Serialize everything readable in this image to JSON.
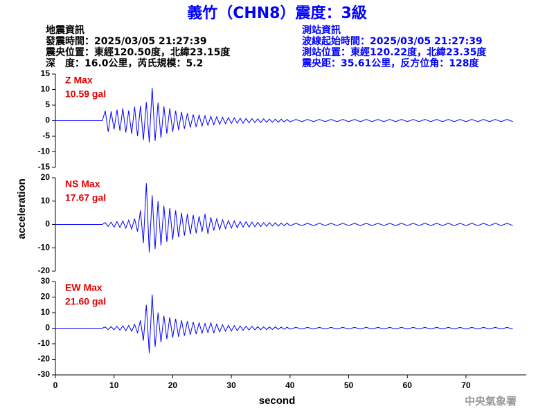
{
  "header": {
    "title": "義竹（CHN8）震度：3級",
    "left": [
      "地震資訊",
      "發震時間：2025/03/05 21:27:39",
      "震央位置：東經120.50度，北緯23.15度",
      "深　度：16.0公里，芮氏規模：5.2"
    ],
    "right": [
      "測站資訊",
      "波線起始時間：2025/03/05 21:27:39",
      "測站位置：東經120.22度，北緯23.35度",
      "震央距：35.61公里，反方位角：128度"
    ]
  },
  "ylabel": "acceleration",
  "credit": "中央氣象署",
  "chart_data": [
    {
      "type": "line",
      "color": "#0000ff",
      "annotation": [
        "Z Max",
        "10.59 gal"
      ],
      "xlim": [
        0,
        80
      ],
      "ylim": [
        -15,
        15
      ],
      "yticks": [
        15,
        10,
        5,
        0,
        -5,
        -10,
        -15
      ],
      "x": [
        0,
        8,
        8.5,
        9,
        9.5,
        10,
        10.5,
        11,
        11.5,
        12,
        12.5,
        13,
        13.5,
        14,
        14.5,
        15,
        15.5,
        16,
        16.5,
        17,
        17.5,
        18,
        18.5,
        19,
        19.5,
        20,
        20.5,
        21,
        21.5,
        22,
        22.5,
        23,
        23.5,
        24,
        24.5,
        25,
        25.5,
        26,
        26.5,
        27,
        27.5,
        28,
        28.5,
        29,
        29.5,
        30,
        30.5,
        31,
        31.5,
        32,
        32.5,
        33,
        33.5,
        34,
        34.5,
        35,
        35.5,
        36,
        36.5,
        37,
        37.5,
        38,
        38.5,
        39,
        39.5,
        40,
        41,
        42,
        43,
        44,
        45,
        46,
        47,
        48,
        49,
        50,
        51,
        52,
        53,
        54,
        55,
        56,
        57,
        58,
        59,
        60,
        61,
        62,
        63,
        64,
        65,
        66,
        67,
        68,
        69,
        70,
        71,
        72,
        73,
        74,
        75,
        76,
        77,
        78
      ],
      "values": [
        0,
        0,
        3.2,
        -3.6,
        3.0,
        -2.8,
        3.5,
        -3.2,
        4.0,
        -3.8,
        3.3,
        -4.2,
        4.5,
        -5.0,
        4.8,
        -6.2,
        6.0,
        -7.0,
        10.59,
        -6.5,
        5.8,
        -5.5,
        4.6,
        -4.2,
        4.0,
        -3.6,
        3.2,
        -3.0,
        2.8,
        -2.6,
        2.4,
        -2.2,
        2.0,
        -2.0,
        1.8,
        -1.7,
        1.6,
        -1.5,
        1.4,
        -1.3,
        1.3,
        -1.2,
        1.1,
        -1.0,
        1.0,
        -0.9,
        0.9,
        -0.8,
        0.8,
        -0.8,
        0.7,
        -0.7,
        0.7,
        -0.6,
        0.6,
        -0.6,
        0.6,
        -0.5,
        0.5,
        -0.5,
        0.5,
        -0.5,
        0.5,
        -0.4,
        0.4,
        -0.4,
        0.4,
        -0.3,
        0.4,
        -0.3,
        0.4,
        -0.3,
        0.4,
        -0.3,
        0.4,
        -0.3,
        0.4,
        -0.3,
        0.4,
        -0.3,
        0.4,
        -0.3,
        0.4,
        -0.3,
        0.4,
        -0.3,
        0.4,
        -0.3,
        0.4,
        -0.3,
        0.4,
        -0.3,
        0.4,
        -0.3,
        0.4,
        -0.3,
        0.4,
        -0.3,
        0.4,
        -0.3,
        0.4,
        -0.3,
        0.4,
        -0.3
      ]
    },
    {
      "type": "line",
      "color": "#0000ff",
      "annotation": [
        "NS Max",
        "17.67 gal"
      ],
      "xlim": [
        0,
        80
      ],
      "ylim": [
        -20,
        20
      ],
      "yticks": [
        20,
        10,
        0,
        -10,
        -20
      ],
      "x": [
        0,
        8,
        8.5,
        9,
        9.5,
        10,
        10.5,
        11,
        11.5,
        12,
        12.5,
        13,
        13.5,
        14,
        14.5,
        15,
        15.5,
        16,
        16.5,
        17,
        17.5,
        18,
        18.5,
        19,
        19.5,
        20,
        20.5,
        21,
        21.5,
        22,
        22.5,
        23,
        23.5,
        24,
        24.5,
        25,
        25.5,
        26,
        26.5,
        27,
        27.5,
        28,
        28.5,
        29,
        29.5,
        30,
        30.5,
        31,
        31.5,
        32,
        32.5,
        33,
        33.5,
        34,
        34.5,
        35,
        35.5,
        36,
        36.5,
        37,
        37.5,
        38,
        38.5,
        39,
        39.5,
        40,
        41,
        42,
        43,
        44,
        45,
        46,
        47,
        48,
        49,
        50,
        51,
        52,
        53,
        54,
        55,
        56,
        57,
        58,
        59,
        60,
        61,
        62,
        63,
        64,
        65,
        66,
        67,
        68,
        69,
        70,
        71,
        72,
        73,
        74,
        75,
        76,
        77,
        78
      ],
      "values": [
        0,
        0,
        0.8,
        -0.9,
        1.0,
        -1.1,
        1.2,
        -1.3,
        1.5,
        -1.6,
        1.8,
        -2.0,
        2.5,
        -3.0,
        6.0,
        -8.0,
        17.67,
        -12.0,
        12.5,
        -10.5,
        10.0,
        -9.0,
        8.0,
        -7.5,
        7.0,
        -6.5,
        6.0,
        -5.5,
        5.0,
        -4.8,
        4.5,
        -4.2,
        4.0,
        -3.8,
        3.5,
        -3.2,
        4.5,
        -4.0,
        3.0,
        -2.6,
        2.4,
        -2.2,
        2.0,
        -1.8,
        1.7,
        -1.6,
        1.5,
        -1.4,
        1.3,
        -1.2,
        1.2,
        -1.1,
        1.0,
        -1.0,
        0.9,
        -0.9,
        0.8,
        -0.8,
        0.8,
        -0.7,
        0.7,
        -0.7,
        0.6,
        -0.6,
        0.6,
        -0.6,
        0.5,
        -0.5,
        0.5,
        -0.5,
        0.5,
        -0.5,
        0.5,
        -0.5,
        0.5,
        -0.5,
        0.5,
        -0.5,
        0.5,
        -0.5,
        0.5,
        -0.5,
        0.5,
        -0.5,
        0.5,
        -0.5,
        0.5,
        -0.5,
        0.5,
        -0.5,
        0.5,
        -0.5,
        0.5,
        -0.5,
        0.5,
        -0.5,
        0.5,
        -0.5,
        0.5,
        -0.5,
        0.5,
        -0.5,
        0.5,
        -0.5
      ]
    },
    {
      "type": "line",
      "color": "#0000ff",
      "annotation": [
        "EW Max",
        "21.60 gal"
      ],
      "xlim": [
        0,
        80
      ],
      "ylim": [
        -30,
        30
      ],
      "yticks": [
        30,
        20,
        10,
        0,
        -10,
        -20,
        -30
      ],
      "xticks": [
        0,
        10,
        20,
        30,
        40,
        50,
        60,
        70
      ],
      "xlabel": "second",
      "x": [
        0,
        8,
        8.5,
        9,
        9.5,
        10,
        10.5,
        11,
        11.5,
        12,
        12.5,
        13,
        13.5,
        14,
        14.5,
        15,
        15.5,
        16,
        16.5,
        17,
        17.5,
        18,
        18.5,
        19,
        19.5,
        20,
        20.5,
        21,
        21.5,
        22,
        22.5,
        23,
        23.5,
        24,
        24.5,
        25,
        25.5,
        26,
        26.5,
        27,
        27.5,
        28,
        28.5,
        29,
        29.5,
        30,
        30.5,
        31,
        31.5,
        32,
        32.5,
        33,
        33.5,
        34,
        34.5,
        35,
        35.5,
        36,
        36.5,
        37,
        37.5,
        38,
        38.5,
        39,
        39.5,
        40,
        41,
        42,
        43,
        44,
        45,
        46,
        47,
        48,
        49,
        50,
        51,
        52,
        53,
        54,
        55,
        56,
        57,
        58,
        59,
        60,
        61,
        62,
        63,
        64,
        65,
        66,
        67,
        68,
        69,
        70,
        71,
        72,
        73,
        74,
        75,
        76,
        77,
        78
      ],
      "values": [
        0,
        0,
        0.8,
        -0.9,
        1.0,
        -1.0,
        1.2,
        -1.3,
        1.5,
        -1.6,
        1.8,
        -2.0,
        2.5,
        -3.0,
        5.0,
        -8.0,
        15.0,
        -16.0,
        21.6,
        -12.0,
        10.0,
        -9.0,
        8.0,
        -7.0,
        7.0,
        -6.0,
        6.0,
        -5.5,
        5.0,
        -4.8,
        4.5,
        -4.2,
        4.0,
        -3.8,
        3.5,
        -3.2,
        3.0,
        -2.8,
        3.5,
        -3.0,
        2.6,
        -2.4,
        2.2,
        -2.0,
        1.9,
        -1.8,
        1.7,
        -1.6,
        1.5,
        -1.4,
        1.3,
        -1.2,
        1.2,
        -1.1,
        1.0,
        -1.0,
        0.9,
        -0.9,
        0.8,
        -0.8,
        0.8,
        -0.7,
        0.7,
        -0.7,
        0.6,
        -0.6,
        0.5,
        -0.5,
        0.5,
        -0.5,
        0.5,
        -0.5,
        0.5,
        -0.5,
        0.5,
        -0.5,
        0.5,
        -0.5,
        0.5,
        -0.5,
        0.5,
        -0.5,
        0.5,
        -0.5,
        0.5,
        -0.5,
        0.5,
        -0.5,
        0.5,
        -0.5,
        0.5,
        -0.5,
        0.5,
        -0.5,
        0.5,
        -0.5,
        0.5,
        -0.5,
        0.5,
        -0.5,
        0.5,
        -0.5,
        0.5,
        -0.5
      ]
    }
  ]
}
